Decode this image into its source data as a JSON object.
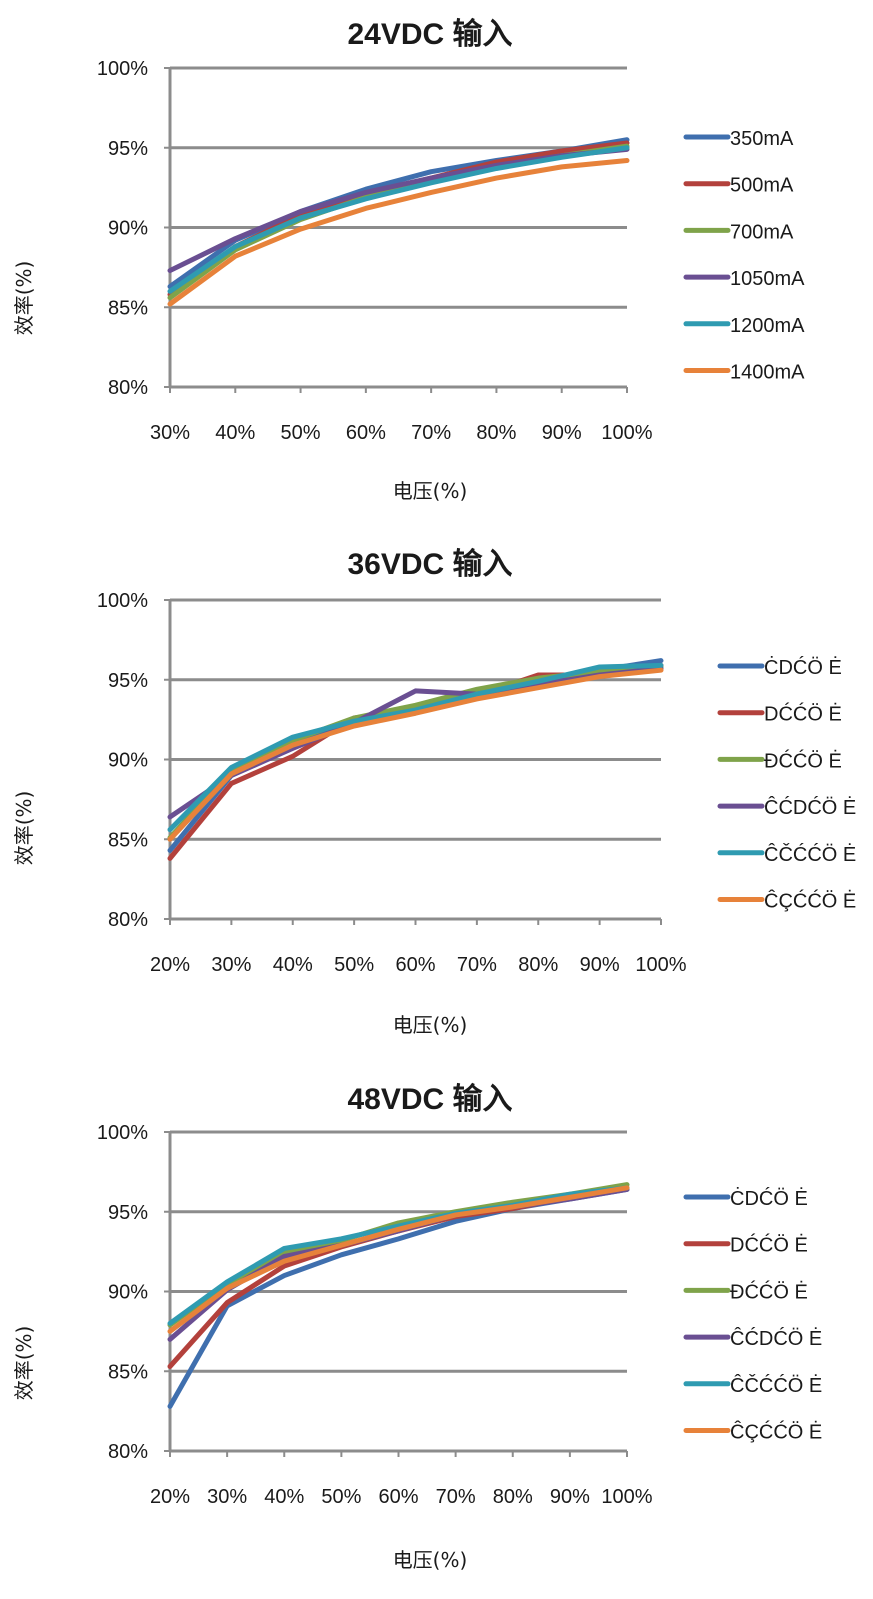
{
  "chart_data": [
    {
      "type": "line",
      "title": "24VDC 输入",
      "xlabel": "电压(%)",
      "ylabel": "效率(%)",
      "categories": [
        "30%",
        "40%",
        "50%",
        "60%",
        "70%",
        "80%",
        "90%",
        "100%"
      ],
      "ylim": [
        80,
        100
      ],
      "yticks": [
        "80%",
        "85%",
        "90%",
        "95%",
        "100%"
      ],
      "grid": true,
      "legend": "right",
      "series": [
        {
          "name": "350mA",
          "color": "#3f6fae",
          "values": [
            86.3,
            89.2,
            91.0,
            92.4,
            93.5,
            94.2,
            94.8,
            95.5
          ]
        },
        {
          "name": "500mA",
          "color": "#b3413c",
          "values": [
            85.8,
            88.8,
            90.8,
            92.1,
            93.1,
            94.1,
            94.8,
            95.3
          ]
        },
        {
          "name": "700mA",
          "color": "#7fa34a",
          "values": [
            85.6,
            88.6,
            90.5,
            91.9,
            92.9,
            93.8,
            94.5,
            95.1
          ]
        },
        {
          "name": "1050mA",
          "color": "#6a4f92",
          "values": [
            87.3,
            89.3,
            91.0,
            92.2,
            93.1,
            93.9,
            94.5,
            94.9
          ]
        },
        {
          "name": "1200mA",
          "color": "#2f9bb1",
          "values": [
            86.0,
            88.8,
            90.6,
            91.8,
            92.8,
            93.7,
            94.4,
            95.0
          ]
        },
        {
          "name": "1400mA",
          "color": "#e7823a",
          "values": [
            85.2,
            88.2,
            89.9,
            91.2,
            92.2,
            93.1,
            93.8,
            94.2
          ]
        }
      ]
    },
    {
      "type": "line",
      "title": "36VDC 输入",
      "xlabel": "电压(%)",
      "ylabel": "效率(%)",
      "categories": [
        "20%",
        "30%",
        "40%",
        "50%",
        "60%",
        "70%",
        "80%",
        "90%",
        "100%"
      ],
      "ylim": [
        80,
        100
      ],
      "yticks": [
        "80%",
        "85%",
        "90%",
        "95%",
        "100%"
      ],
      "grid": true,
      "legend": "right",
      "series": [
        {
          "name": "ĊDĆÖ Ė",
          "color": "#3f6fae",
          "values": [
            84.3,
            89.0,
            91.0,
            92.4,
            93.0,
            93.9,
            94.8,
            95.6,
            96.2
          ]
        },
        {
          "name": "DĆĆÖ Ė",
          "color": "#b3413c",
          "values": [
            83.8,
            88.5,
            90.2,
            92.6,
            93.1,
            94.0,
            95.3,
            95.3,
            95.9
          ]
        },
        {
          "name": "ĐĆĆÖ Ė",
          "color": "#7fa34a",
          "values": [
            85.1,
            89.3,
            91.2,
            92.6,
            93.4,
            94.4,
            95.1,
            95.5,
            95.8
          ]
        },
        {
          "name": "ĈĆDĆÖ Ė",
          "color": "#6a4f92",
          "values": [
            86.4,
            89.0,
            90.7,
            92.3,
            94.3,
            94.1,
            94.7,
            95.3,
            95.7
          ]
        },
        {
          "name": "ĈČĆĆÖ Ė",
          "color": "#2f9bb1",
          "values": [
            85.6,
            89.5,
            91.4,
            92.4,
            93.1,
            94.1,
            94.9,
            95.8,
            95.9
          ]
        },
        {
          "name": "ĈÇĆĆÖ Ė",
          "color": "#e7823a",
          "values": [
            85.0,
            89.1,
            90.9,
            92.1,
            92.9,
            93.8,
            94.5,
            95.2,
            95.6
          ]
        }
      ]
    },
    {
      "type": "line",
      "title": "48VDC 输入",
      "xlabel": "电压(%)",
      "ylabel": "效率(%)",
      "categories": [
        "20%",
        "30%",
        "40%",
        "50%",
        "60%",
        "70%",
        "80%",
        "90%",
        "100%"
      ],
      "ylim": [
        80,
        100
      ],
      "yticks": [
        "80%",
        "85%",
        "90%",
        "95%",
        "100%"
      ],
      "grid": true,
      "legend": "right",
      "series": [
        {
          "name": "ĊDĆÖ Ė",
          "color": "#3f6fae",
          "values": [
            82.8,
            89.1,
            91.0,
            92.3,
            93.3,
            94.4,
            95.2,
            95.8,
            96.4
          ]
        },
        {
          "name": "DĆĆÖ Ė",
          "color": "#b3413c",
          "values": [
            85.3,
            89.3,
            91.6,
            92.8,
            93.8,
            94.7,
            95.2,
            95.9,
            96.5
          ]
        },
        {
          "name": "ĐĆĆÖ Ė",
          "color": "#7fa34a",
          "values": [
            87.9,
            90.5,
            92.4,
            93.2,
            94.3,
            95.0,
            95.6,
            96.1,
            96.7
          ]
        },
        {
          "name": "ĈĆDĆÖ Ė",
          "color": "#6a4f92",
          "values": [
            87.0,
            90.1,
            92.2,
            92.9,
            93.8,
            94.8,
            95.3,
            95.8,
            96.4
          ]
        },
        {
          "name": "ĈČĆĆÖ Ė",
          "color": "#2f9bb1",
          "values": [
            88.0,
            90.6,
            92.7,
            93.3,
            94.1,
            94.9,
            95.4,
            96.1,
            96.5
          ]
        },
        {
          "name": "ĈÇĆĆÖ Ė",
          "color": "#e7823a",
          "values": [
            87.5,
            90.2,
            91.9,
            92.9,
            93.9,
            94.8,
            95.3,
            95.9,
            96.5
          ]
        }
      ]
    }
  ]
}
